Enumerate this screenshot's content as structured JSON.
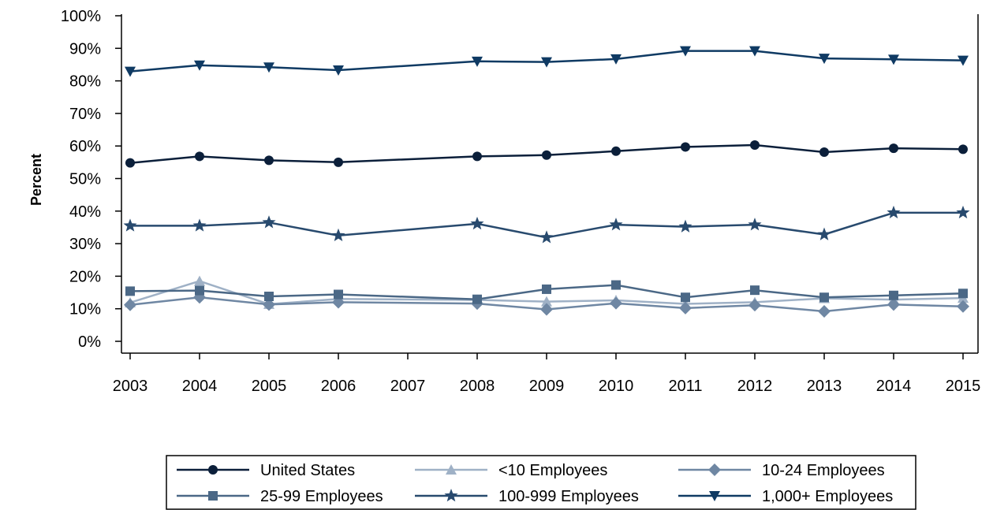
{
  "chart_data": {
    "type": "line",
    "title": "",
    "xlabel": "",
    "ylabel": "Percent",
    "x": [
      "2003",
      "2004",
      "2005",
      "2006",
      "2007",
      "2008",
      "2009",
      "2010",
      "2011",
      "2012",
      "2013",
      "2014",
      "2015"
    ],
    "ylim": [
      0,
      100
    ],
    "yticks": [
      "0%",
      "10%",
      "20%",
      "30%",
      "40%",
      "50%",
      "60%",
      "70%",
      "80%",
      "90%",
      "100%"
    ],
    "grid": false,
    "legend_position": "bottom",
    "series": [
      {
        "name": "United States",
        "color": "#0b1f3a",
        "marker": "circle",
        "values": [
          54.8,
          56.8,
          55.6,
          55.0,
          null,
          56.8,
          57.2,
          58.4,
          59.7,
          60.3,
          58.1,
          59.3,
          59.0
        ]
      },
      {
        "name": "<10 Employees",
        "color": "#9fb1c6",
        "marker": "triangle",
        "values": [
          11.9,
          18.5,
          11.4,
          13.0,
          null,
          12.7,
          12.2,
          12.6,
          11.5,
          12.0,
          13.2,
          12.8,
          13.3
        ]
      },
      {
        "name": "10-24 Employees",
        "color": "#6f87a3",
        "marker": "diamond",
        "values": [
          11.2,
          13.5,
          11.3,
          12.0,
          null,
          11.6,
          9.8,
          11.7,
          10.2,
          11.1,
          9.2,
          11.3,
          10.7
        ]
      },
      {
        "name": "25-99 Employees",
        "color": "#4b6886",
        "marker": "square",
        "values": [
          15.4,
          15.6,
          13.8,
          14.4,
          null,
          12.9,
          16.0,
          17.3,
          13.5,
          15.7,
          13.5,
          14.1,
          14.7
        ]
      },
      {
        "name": "100-999 Employees",
        "color": "#284a6e",
        "marker": "star",
        "values": [
          35.5,
          35.5,
          36.5,
          32.5,
          null,
          36.1,
          31.9,
          35.8,
          35.2,
          35.8,
          32.8,
          39.5,
          39.5
        ]
      },
      {
        "name": "1,000+ Employees",
        "color": "#0f3a63",
        "marker": "triangle-down",
        "values": [
          82.9,
          84.8,
          84.2,
          83.3,
          null,
          86.0,
          85.8,
          86.7,
          89.2,
          89.2,
          86.9,
          86.6,
          86.3
        ]
      }
    ]
  }
}
